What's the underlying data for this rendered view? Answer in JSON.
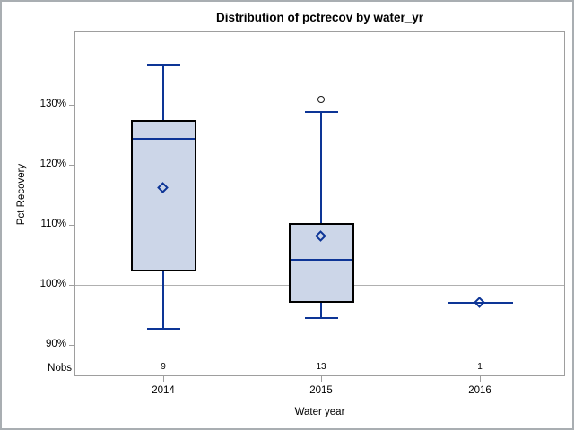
{
  "title": "Distribution of pctrecov by water_yr",
  "y_axis": {
    "label": "Pct Recovery"
  },
  "x_axis": {
    "label": "Water year"
  },
  "nobs_label": "Nobs",
  "colors": {
    "box_fill": "#ccd6e8",
    "box_border": "#000000",
    "line_blue": "#0d3596",
    "frame_gray": "#9e9e9e",
    "refline_gray": "#b0b0b0",
    "outlier_black": "#1a1a1a",
    "window_border": "#a9aeb2",
    "background": "#ffffff"
  },
  "chart_data": {
    "type": "box",
    "title": "Distribution of pctrecov by water_yr",
    "xlabel": "Water year",
    "ylabel": "Pct Recovery",
    "ylim": [
      86,
      142
    ],
    "refline": 100,
    "grid": false,
    "yticks": [
      {
        "value": 130,
        "label": "130%"
      },
      {
        "value": 120,
        "label": "120%"
      },
      {
        "value": 110,
        "label": "110%"
      },
      {
        "value": 100,
        "label": "100%"
      },
      {
        "value": 90,
        "label": "90%"
      }
    ],
    "categories": [
      "2014",
      "2015",
      "2016"
    ],
    "series": [
      {
        "label": "2014",
        "nobs": "9",
        "whisker_low": 92.8,
        "q1": 102.3,
        "median": 124.5,
        "q3": 127.4,
        "whisker_high": 136.7,
        "mean": 116.2,
        "outliers": []
      },
      {
        "label": "2015",
        "nobs": "13",
        "whisker_low": 94.6,
        "q1": 97.0,
        "median": 104.3,
        "q3": 110.3,
        "whisker_high": 129.0,
        "mean": 108.2,
        "outliers": [
          130.9
        ]
      },
      {
        "label": "2016",
        "nobs": "1",
        "whisker_low": null,
        "q1": 97.2,
        "median": 97.2,
        "q3": 97.2,
        "whisker_high": null,
        "mean": 97.2,
        "outliers": []
      }
    ]
  }
}
